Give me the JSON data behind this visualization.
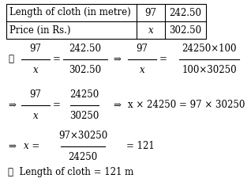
{
  "table": {
    "rows": [
      [
        "Length of cloth (in metre)",
        "97",
        "242.50"
      ],
      [
        "Price (in Rs.)",
        "x",
        "302.50"
      ]
    ]
  },
  "bg_color": "#ffffff",
  "text_color": "#000000",
  "fontsize": 8.5,
  "fontsize_table": 8.5
}
